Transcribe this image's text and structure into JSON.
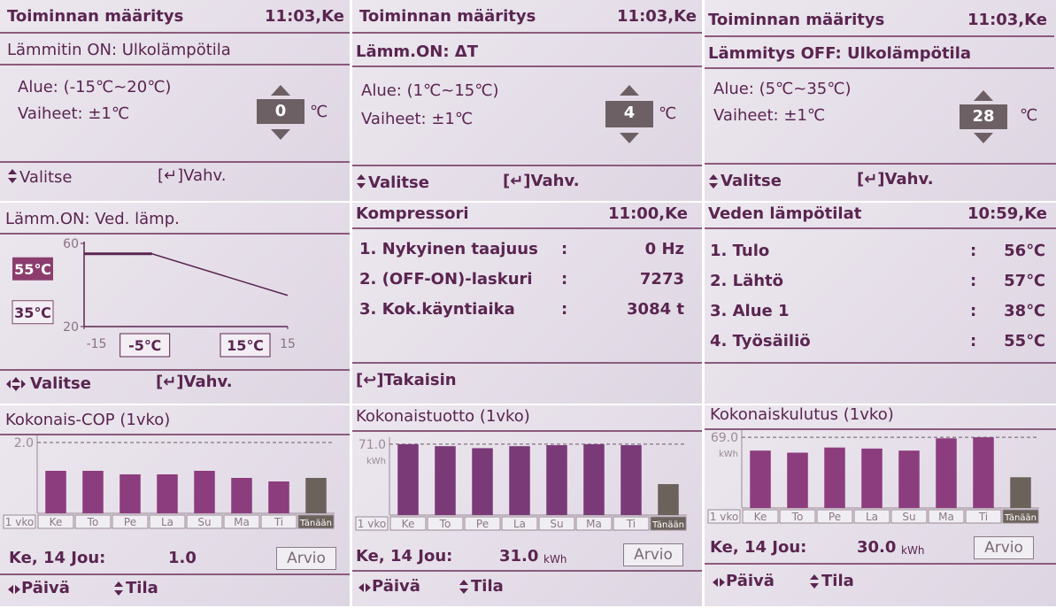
{
  "settings": [
    {
      "title": "Toiminnan määritys",
      "time": "11:03,Ke",
      "subtitle": "Lämmitin ON: Ulkolämpötila",
      "range": "Alue: (-15℃~20℃)",
      "steps": "Vaiheet: ±1℃",
      "value": "0",
      "unit": "℃",
      "select": "Valitse",
      "confirm": "[↵]Vahv."
    },
    {
      "title": "Toiminnan määritys",
      "time": "11:03,Ke",
      "subtitle": "Lämm.ON: ΔT",
      "range": "Alue: (1℃~15℃)",
      "steps": "Vaiheet: ±1℃",
      "value": "4",
      "unit": "℃",
      "select": "Valitse",
      "confirm": "[↵]Vahv."
    },
    {
      "title": "Toiminnan määritys",
      "time": "11:03,Ke",
      "subtitle": "Lämmitys OFF: Ulkolämpötila",
      "range": "Alue: (5℃~35℃)",
      "steps": "Vaiheet: ±1℃",
      "value": "28",
      "unit": "℃",
      "select": "Valitse",
      "confirm": "[↵]Vahv."
    }
  ],
  "graph": {
    "type": "line",
    "title": "Lämm.ON: Ved. lämp.",
    "xlim": [
      -15,
      15
    ],
    "ylim": [
      20,
      60
    ],
    "xticks": [
      -15,
      15
    ],
    "yticks": [
      20,
      60
    ],
    "x": [
      -15,
      -5,
      15
    ],
    "y": [
      55,
      55,
      35
    ],
    "color": "#5a2550",
    "high_label": "55℃",
    "low_label": "35℃",
    "left_label": "-5℃",
    "right_label": "15℃",
    "select": "Valitse",
    "confirm": "[↵]Vahv."
  },
  "compressor": {
    "title": "Kompressori",
    "time": "11:00,Ke",
    "rows": [
      [
        "1. Nykyinen taajuus",
        ":",
        "0 Hz"
      ],
      [
        "2. (OFF-ON)-laskuri",
        ":",
        "7273"
      ],
      [
        "3. Kok.käyntiaika",
        ":",
        "3084 t"
      ]
    ],
    "back": "[↩]Takaisin"
  },
  "water": {
    "title": "Veden lämpötilat",
    "time": "10:59,Ke",
    "rows": [
      [
        "1. Tulo",
        ":",
        "56℃"
      ],
      [
        "2. Lähtö",
        ":",
        "57℃"
      ],
      [
        "3. Alue 1",
        ":",
        "38℃"
      ],
      [
        "4. Työsäiliö",
        ":",
        "55℃"
      ]
    ]
  },
  "charts": [
    {
      "type": "bar",
      "title": "Kokonais-COP (1vko)",
      "period": "1 vko",
      "categories": [
        "Ke",
        "To",
        "Pe",
        "La",
        "Su",
        "Ma",
        "Ti",
        "Tänään"
      ],
      "values": [
        1.2,
        1.2,
        1.1,
        1.1,
        1.2,
        1.0,
        0.9,
        1.0
      ],
      "ylim": [
        0,
        2.2
      ],
      "yticks": [
        {
          "value": 2,
          "label": "2.0"
        }
      ],
      "color": "#8c3d7e",
      "highlight_color": "#6b625c",
      "day": "Ke, 14 Jou:",
      "day_value": "1.0",
      "estimate": "Arvio",
      "day_nav": "Päivä",
      "mode": "Tila"
    },
    {
      "type": "bar",
      "title": "Kokonaistuotto (1vko)",
      "period": "1 vko",
      "categories": [
        "Ke",
        "To",
        "Pe",
        "La",
        "Su",
        "Ma",
        "Ti",
        "Tänään"
      ],
      "values": [
        71,
        69,
        67,
        69,
        70,
        71,
        70,
        31
      ],
      "ylim": [
        0,
        78
      ],
      "yticks": [
        {
          "value": 71,
          "label": "71.0"
        }
      ],
      "y_unit": "kWh",
      "color": "#7a3a78",
      "highlight_color": "#6b625c",
      "day": "Ke, 14 Jou:",
      "day_value": "31.0",
      "day_unit": "kWh",
      "estimate": "Arvio",
      "day_nav": "Päivä",
      "mode": "Tila"
    },
    {
      "type": "bar",
      "title": "Kokonaiskulutus (1vko)",
      "period": "1 vko",
      "categories": [
        "Ke",
        "To",
        "Pe",
        "La",
        "Su",
        "Ma",
        "Ti",
        "Tänään"
      ],
      "values": [
        56,
        54,
        59,
        58,
        56,
        68,
        69,
        30
      ],
      "ylim": [
        0,
        76
      ],
      "yticks": [
        {
          "value": 69,
          "label": "69.0"
        }
      ],
      "y_unit": "kWh",
      "color": "#8c3d7e",
      "highlight_color": "#6b625c",
      "day": "Ke, 14 Jou:",
      "day_value": "30.0",
      "day_unit": "kWh",
      "estimate": "Arvio",
      "day_nav": "Päivä",
      "mode": "Tila"
    }
  ]
}
